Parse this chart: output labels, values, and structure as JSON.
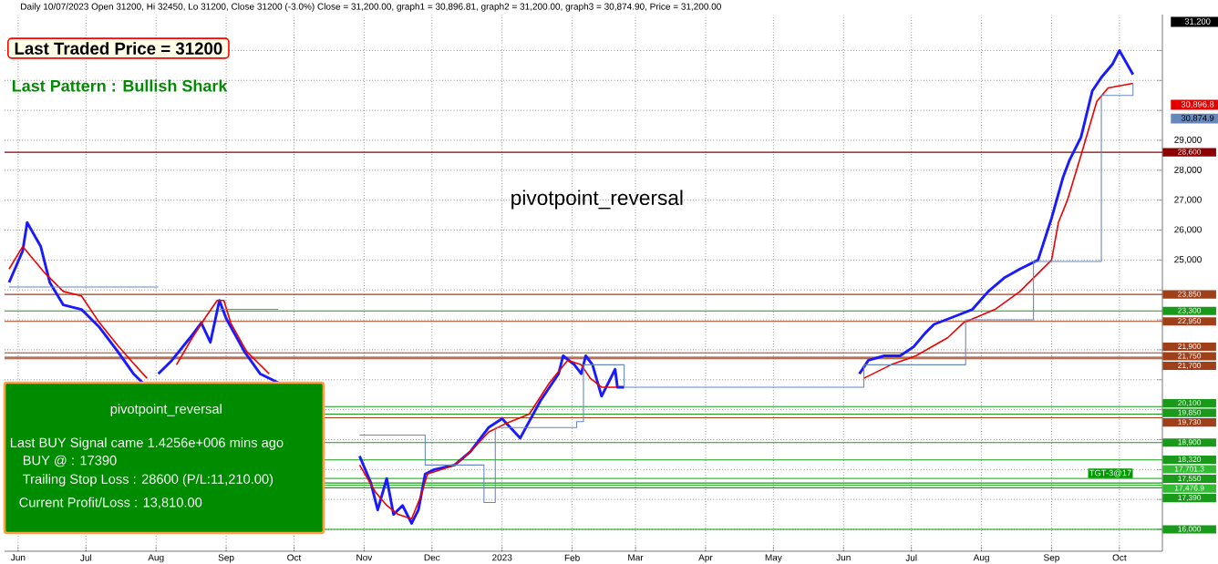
{
  "chart_data": {
    "type": "line",
    "title": "Daily 10/07/2023 Open 31200, Hi 32450, Lo 31200, Close 31200 (-3.0%) Close = 31,200.00, graph1 = 30,896.81, graph2 = 31,200.00, graph3 = 30,874.90, Price = 31,200.00",
    "xlim": [
      "2022-05-26",
      "2023-10-20"
    ],
    "ylim": [
      15270,
      33200
    ],
    "xticks": [
      {
        "value": "2022-06-01",
        "label": "Jun"
      },
      {
        "value": "2022-07-01",
        "label": "Jul"
      },
      {
        "value": "2022-08-01",
        "label": "Aug"
      },
      {
        "value": "2022-09-01",
        "label": "Sep"
      },
      {
        "value": "2022-10-01",
        "label": "Oct"
      },
      {
        "value": "2022-11-01",
        "label": "Nov"
      },
      {
        "value": "2022-12-01",
        "label": "Dec"
      },
      {
        "value": "2023-01-01",
        "label": "2023"
      },
      {
        "value": "2023-02-01",
        "label": "Feb"
      },
      {
        "value": "2023-03-01",
        "label": "Mar"
      },
      {
        "value": "2023-04-01",
        "label": "Apr"
      },
      {
        "value": "2023-05-01",
        "label": "May"
      },
      {
        "value": "2023-06-01",
        "label": "Jun"
      },
      {
        "value": "2023-07-01",
        "label": "Jul"
      },
      {
        "value": "2023-08-01",
        "label": "Aug"
      },
      {
        "value": "2023-09-01",
        "label": "Sep"
      },
      {
        "value": "2023-10-01",
        "label": "Oct"
      }
    ],
    "yticks": [
      {
        "value": 16000,
        "label": null
      },
      {
        "value": 17000,
        "label": null
      },
      {
        "value": 18000,
        "label": null
      },
      {
        "value": 19000,
        "label": null
      },
      {
        "value": 20000,
        "label": null
      },
      {
        "value": 21000,
        "label": null
      },
      {
        "value": 22000,
        "label": null
      },
      {
        "value": 23000,
        "label": null
      },
      {
        "value": 24000,
        "label": null
      },
      {
        "value": 25000,
        "label": "25,000"
      },
      {
        "value": 26000,
        "label": "26,000"
      },
      {
        "value": 27000,
        "label": "27,000"
      },
      {
        "value": 28000,
        "label": "28,000"
      },
      {
        "value": 29000,
        "label": "29,000"
      },
      {
        "value": 30000,
        "label": null
      },
      {
        "value": 31000,
        "label": null
      },
      {
        "value": 32000,
        "label": null
      }
    ],
    "grid": true,
    "series": [
      {
        "color": "#1a1aff",
        "x": [
          "2022-05-28",
          "2022-06-03",
          "2022-06-05",
          "2022-06-11",
          "2022-06-15",
          "2022-06-21",
          "2022-06-29",
          "2022-07-07",
          "2022-07-15",
          "2022-07-22",
          "2022-07-26",
          "2022-07-30",
          "2022-08-02",
          "2022-08-08",
          "2022-08-16",
          "2022-08-21",
          "2022-08-25",
          "2022-08-29",
          "2022-09-01",
          "2022-09-09",
          "2022-09-16",
          "2022-09-24",
          "2022-10-07",
          "2022-10-30",
          "2022-11-04",
          "2022-11-07",
          "2022-11-11",
          "2022-11-14",
          "2022-11-18",
          "2022-11-22",
          "2022-11-25",
          "2022-11-28",
          "2022-12-02",
          "2022-12-11",
          "2022-12-18",
          "2022-12-26",
          "2023-01-01",
          "2023-01-09",
          "2023-01-18",
          "2023-01-26",
          "2023-01-28",
          "2023-02-02",
          "2023-02-05",
          "2023-02-07",
          "2023-02-10",
          "2023-02-14",
          "2023-02-17",
          "2023-02-20",
          "2023-02-21",
          "2023-02-24",
          "2023-04-20",
          "2023-06-08",
          "2023-06-12",
          "2023-06-19",
          "2023-06-26",
          "2023-07-02",
          "2023-07-07",
          "2023-07-11",
          "2023-07-23",
          "2023-07-28",
          "2023-08-04",
          "2023-08-11",
          "2023-08-18",
          "2023-08-26",
          "2023-09-01",
          "2023-09-06",
          "2023-09-09",
          "2023-09-14",
          "2023-09-19",
          "2023-09-23",
          "2023-09-28",
          "2023-10-01",
          "2023-10-07"
        ],
        "values": [
          24250,
          25300,
          26250,
          25450,
          24250,
          23500,
          23350,
          22750,
          21950,
          21200,
          20900,
          null,
          21200,
          21650,
          22400,
          22900,
          22250,
          23650,
          23050,
          21950,
          21200,
          20900,
          null,
          18450,
          17550,
          16650,
          17700,
          16500,
          16800,
          16200,
          16650,
          17850,
          18000,
          18150,
          18600,
          19400,
          19700,
          19050,
          20300,
          21200,
          21800,
          21500,
          21200,
          21800,
          21500,
          20450,
          20900,
          21350,
          20750,
          20750,
          null,
          21200,
          21650,
          21800,
          21800,
          22100,
          22550,
          22850,
          23200,
          23350,
          23950,
          24400,
          24700,
          25000,
          26400,
          27750,
          28350,
          29100,
          30650,
          31100,
          31550,
          32000,
          31200
        ]
      },
      {
        "color": "#ee0000",
        "x": [
          "2022-05-28",
          "2022-06-03",
          "2022-06-13",
          "2022-06-21",
          "2022-06-29",
          "2022-07-07",
          "2022-07-15",
          "2022-07-22",
          "2022-07-28",
          "2022-07-30",
          "2022-08-10",
          "2022-08-17",
          "2022-08-23",
          "2022-08-28",
          "2022-08-31",
          "2022-09-03",
          "2022-09-10",
          "2022-09-20",
          "2022-10-07",
          "2022-10-30",
          "2022-11-06",
          "2022-11-11",
          "2022-11-16",
          "2022-11-22",
          "2022-11-26",
          "2022-11-29",
          "2022-12-11",
          "2022-12-18",
          "2022-12-26",
          "2023-01-03",
          "2023-01-13",
          "2023-01-22",
          "2023-01-30",
          "2023-02-05",
          "2023-02-09",
          "2023-02-14",
          "2023-02-21",
          "2023-04-20",
          "2023-06-10",
          "2023-06-22",
          "2023-07-03",
          "2023-07-17",
          "2023-07-24",
          "2023-08-07",
          "2023-08-18",
          "2023-08-26",
          "2023-09-01",
          "2023-09-04",
          "2023-09-08",
          "2023-09-14",
          "2023-09-21",
          "2023-09-26",
          "2023-10-07"
        ],
        "values": [
          24700,
          25450,
          24550,
          23950,
          23800,
          22900,
          22150,
          21550,
          21050,
          null,
          21500,
          22400,
          23100,
          23650,
          23650,
          22900,
          21950,
          21200,
          null,
          18150,
          17250,
          16800,
          16500,
          16350,
          17100,
          17850,
          18150,
          18600,
          19250,
          19550,
          19850,
          20900,
          21650,
          21500,
          21050,
          20750,
          20750,
          null,
          21050,
          21500,
          21800,
          22400,
          22900,
          23350,
          23950,
          24550,
          25000,
          26250,
          27000,
          28500,
          30300,
          30750,
          30900
        ]
      },
      {
        "type": "step",
        "color": "#6688bb",
        "x": [
          "2022-05-28",
          "2022-08-02",
          "2022-08-03",
          "2022-08-29",
          "2022-09-24",
          "2022-09-26",
          "2022-10-30",
          "2022-11-28",
          "2022-12-23",
          "2022-12-24",
          "2022-12-29",
          "2023-02-03",
          "2023-02-06",
          "2023-02-24",
          "2023-06-08",
          "2023-06-10",
          "2023-07-24",
          "2023-07-25",
          "2023-08-23",
          "2023-08-24",
          "2023-09-21",
          "2023-09-23",
          "2023-10-07"
        ],
        "values": [
          24100,
          24100,
          null,
          23350,
          23350,
          null,
          19150,
          18150,
          18150,
          16900,
          19400,
          19600,
          21500,
          20750,
          20750,
          21500,
          21500,
          23000,
          23000,
          24950,
          24950,
          30500,
          30900
        ]
      }
    ],
    "ref_lines": [
      {
        "axis": "y",
        "value": 28600,
        "label": "28,600",
        "color": "#8b0000"
      },
      {
        "axis": "y",
        "value": 23850,
        "label": "23,850",
        "color": "#a0401a"
      },
      {
        "axis": "y",
        "value": 23300,
        "label": "23,300",
        "color": "#1a9a1a"
      },
      {
        "axis": "y",
        "value": 22950,
        "label": "22,950",
        "color": "#a0401a"
      },
      {
        "axis": "y",
        "value": 21900,
        "label": "21,900",
        "color": "#a0401a"
      },
      {
        "axis": "y",
        "value": 21750,
        "label": "21,750",
        "color": "#a0401a"
      },
      {
        "axis": "y",
        "value": 21700,
        "label": "21,700",
        "color": "#a0401a"
      },
      {
        "axis": "y",
        "value": 20100,
        "label": "20,100",
        "color": "#1a9a1a"
      },
      {
        "axis": "y",
        "value": 19850,
        "label": "19,850",
        "color": "#1a9a1a"
      },
      {
        "axis": "y",
        "value": 19730,
        "label": "19,730",
        "color": "#a0401a"
      },
      {
        "axis": "y",
        "value": 18900,
        "label": "18,900",
        "color": "#1a9a1a"
      },
      {
        "axis": "y",
        "value": 18320,
        "label": "18,320",
        "color": "#1a9a1a"
      },
      {
        "axis": "y",
        "value": 17701.3,
        "label": "17,701.3",
        "color": "#33bb33"
      },
      {
        "axis": "y",
        "value": 17550,
        "label": "17,550",
        "color": "#1a9a1a"
      },
      {
        "axis": "y",
        "value": 17476.9,
        "label": "17,476.9",
        "color": "#33bb33"
      },
      {
        "axis": "y",
        "value": 17390,
        "label": "17,390",
        "color": "#1a9a1a"
      },
      {
        "axis": "y",
        "value": 16000,
        "label": "16,000",
        "color": "#1a9a1a"
      }
    ],
    "annotations": [
      "Last Traded Price = 31200",
      "Last Pattern : Bullish Shark",
      "pivotpoint_reversal",
      "pivotpoint_reversal",
      "Last BUY Signal came 1.4256e+006 mins ago",
      "BUY @  : 17390",
      "Trailing Stop Loss : 28600 (P/L:11,210.00)",
      "Current Profit/Loss : 13,810.00",
      "31,200",
      "30,896.8",
      "30,874.9",
      {
        "text": "TGT-3@17",
        "x": "2023-10-07",
        "y": 17701.3
      }
    ]
  }
}
